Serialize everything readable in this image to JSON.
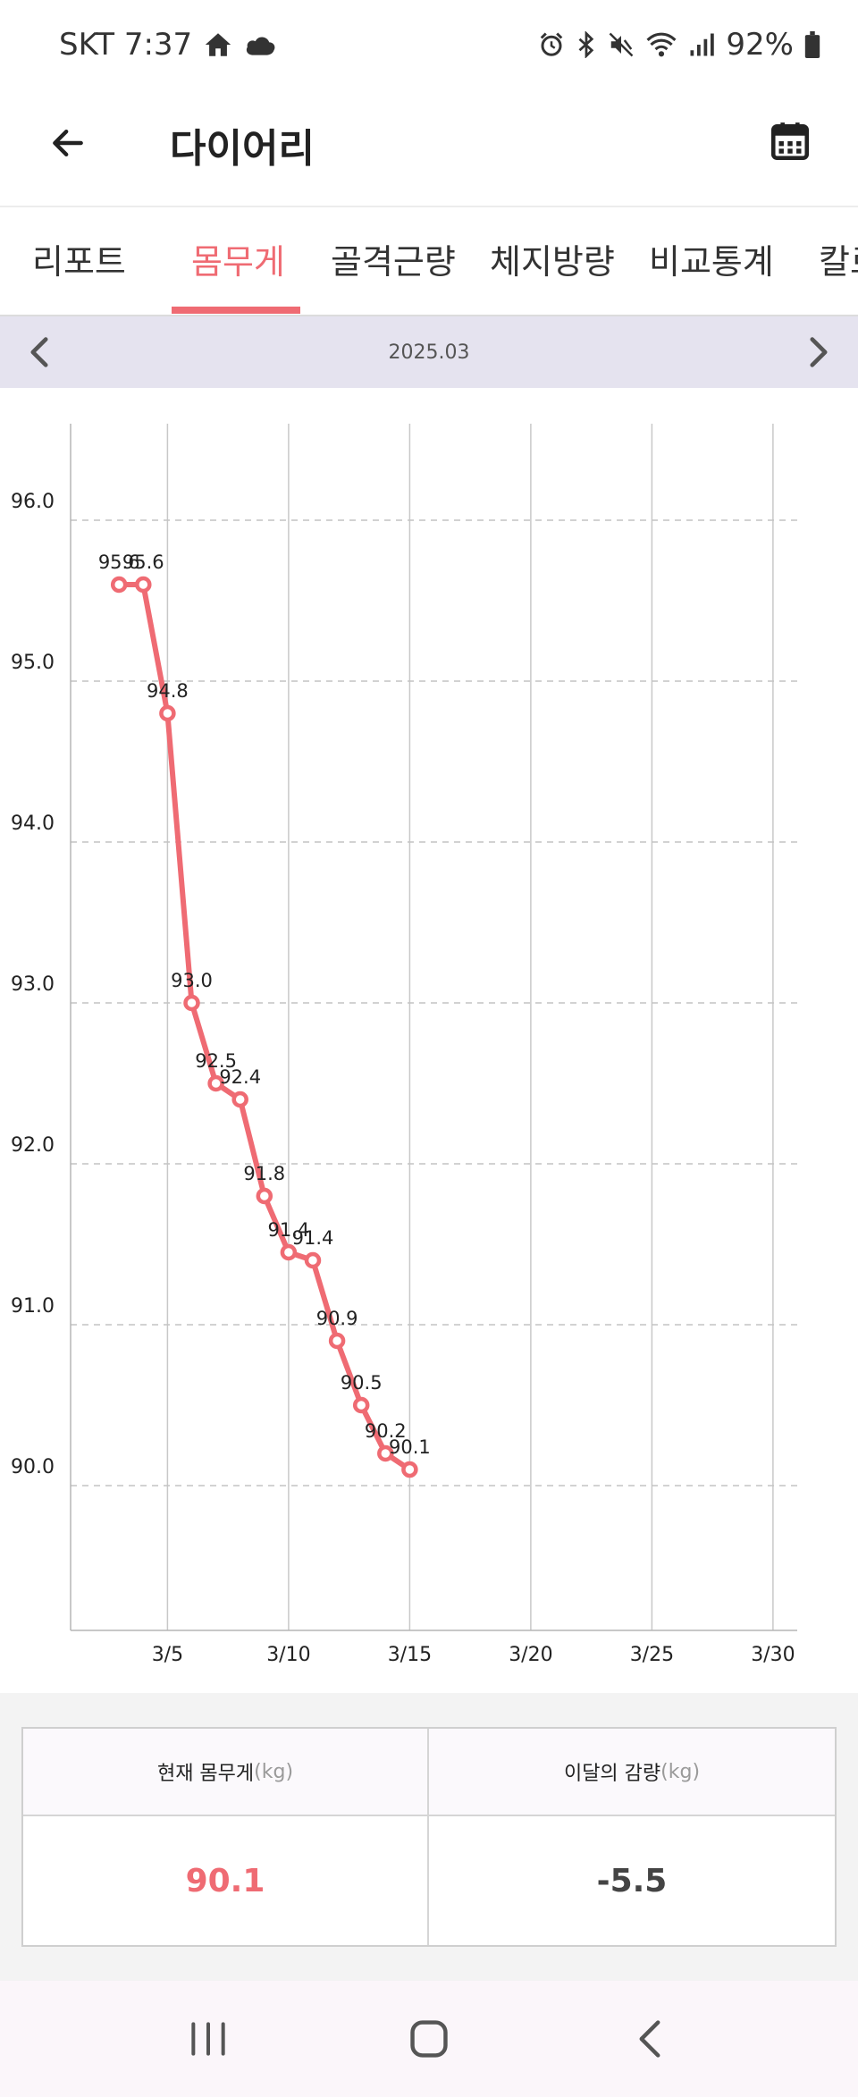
{
  "status_bar": {
    "carrier_time": "SKT 7:37",
    "battery": "92%",
    "left_icons": [
      "home-icon",
      "cloud-icon"
    ],
    "right_icons": [
      "alarm-icon",
      "bluetooth-icon",
      "mute-icon",
      "wifi-icon",
      "signal-icon",
      "battery-icon"
    ]
  },
  "app_bar": {
    "title": "다이어리",
    "back_icon": "arrow-left-icon",
    "calendar_icon": "calendar-icon"
  },
  "tabs": [
    {
      "label": "리포트",
      "active": false
    },
    {
      "label": "몸무게",
      "active": true
    },
    {
      "label": "골격근량",
      "active": false
    },
    {
      "label": "체지방량",
      "active": false
    },
    {
      "label": "비교통계",
      "active": false
    },
    {
      "label": "칼로",
      "active": false
    }
  ],
  "month_nav": {
    "label": "2025.03",
    "prev_icon": "chevron-left-icon",
    "next_icon": "chevron-right-icon"
  },
  "chart_data": {
    "type": "line",
    "title": "",
    "xlabel": "",
    "ylabel": "",
    "x_ticks": [
      "3/5",
      "3/10",
      "3/15",
      "3/20",
      "3/25",
      "3/30"
    ],
    "y_ticks": [
      "96.0",
      "95.0",
      "94.0",
      "93.0",
      "92.0",
      "91.0",
      "90.0"
    ],
    "xlim": [
      1,
      31
    ],
    "ylim": [
      89.1,
      96.6
    ],
    "grid": {
      "x": true,
      "y": true,
      "y_style": "dashed"
    },
    "color": "#ef6b73",
    "series": [
      {
        "x": [
          3,
          4,
          5,
          6,
          7,
          8,
          9,
          10,
          11,
          12,
          13,
          14,
          15
        ],
        "values": [
          95.6,
          95.6,
          94.8,
          93.0,
          92.5,
          92.4,
          91.8,
          91.45,
          91.4,
          90.9,
          90.5,
          90.2,
          90.1
        ],
        "labels": [
          "95.6",
          "95.6",
          "94.8",
          "93.0",
          "92.5",
          "92.4",
          "91.8",
          "91.4",
          "91.4",
          "90.9",
          "90.5",
          "90.2",
          "90.1"
        ]
      }
    ]
  },
  "summary": {
    "current_label": "현재 몸무게",
    "current_unit": "(kg)",
    "current_value": "90.1",
    "change_label": "이달의 감량",
    "change_unit": "(kg)",
    "change_value": "-5.5"
  },
  "nav_bar": {
    "icons": [
      "recent-apps-icon",
      "home-button-icon",
      "back-nav-icon"
    ]
  }
}
